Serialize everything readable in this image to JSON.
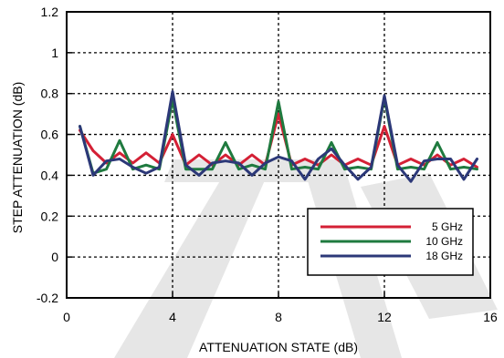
{
  "chart_data": {
    "type": "line",
    "title": "",
    "xlabel": "ATTENUATION STATE (dB)",
    "ylabel": "STEP ATTENUATION (dB)",
    "xlim": [
      0,
      16
    ],
    "ylim": [
      -0.2,
      1.2
    ],
    "xticks": [
      0,
      4,
      8,
      12,
      16
    ],
    "xtick_labels": [
      "0",
      "4",
      "8",
      "12",
      "16"
    ],
    "yticks": [
      -0.2,
      0,
      0.2,
      0.4,
      0.6,
      0.8,
      1,
      1.2
    ],
    "ytick_labels": [
      "-0.2",
      "0",
      "0.2",
      "0.4",
      "0.6",
      "0.8",
      "1",
      "1.2"
    ],
    "grid": true,
    "legend_position": "lower-right",
    "x": [
      0.5,
      1,
      1.5,
      2,
      2.5,
      3,
      3.5,
      4,
      4.5,
      5,
      5.5,
      6,
      6.5,
      7,
      7.5,
      8,
      8.5,
      9,
      9.5,
      10,
      10.5,
      11,
      11.5,
      12,
      12.5,
      13,
      13.5,
      14,
      14.5,
      15,
      15.5
    ],
    "series": [
      {
        "name": "5 GHz",
        "color": "#d42035",
        "values": [
          0.62,
          0.52,
          0.46,
          0.51,
          0.46,
          0.51,
          0.46,
          0.6,
          0.45,
          0.5,
          0.45,
          0.5,
          0.45,
          0.5,
          0.45,
          0.7,
          0.45,
          0.48,
          0.45,
          0.5,
          0.45,
          0.48,
          0.45,
          0.64,
          0.45,
          0.48,
          0.45,
          0.5,
          0.45,
          0.48,
          0.44
        ]
      },
      {
        "name": "10 GHz",
        "color": "#1f7a3f",
        "values": [
          0.64,
          0.41,
          0.43,
          0.57,
          0.43,
          0.45,
          0.43,
          0.77,
          0.43,
          0.43,
          0.43,
          0.56,
          0.43,
          0.45,
          0.43,
          0.76,
          0.43,
          0.44,
          0.43,
          0.56,
          0.43,
          0.44,
          0.43,
          0.78,
          0.43,
          0.44,
          0.43,
          0.56,
          0.43,
          0.44,
          0.43
        ]
      },
      {
        "name": "18 GHz",
        "color": "#2c3878",
        "values": [
          0.64,
          0.4,
          0.47,
          0.48,
          0.44,
          0.41,
          0.44,
          0.81,
          0.45,
          0.4,
          0.46,
          0.47,
          0.46,
          0.4,
          0.46,
          0.49,
          0.47,
          0.38,
          0.48,
          0.53,
          0.45,
          0.38,
          0.44,
          0.79,
          0.45,
          0.37,
          0.47,
          0.48,
          0.48,
          0.38,
          0.48
        ]
      }
    ]
  }
}
